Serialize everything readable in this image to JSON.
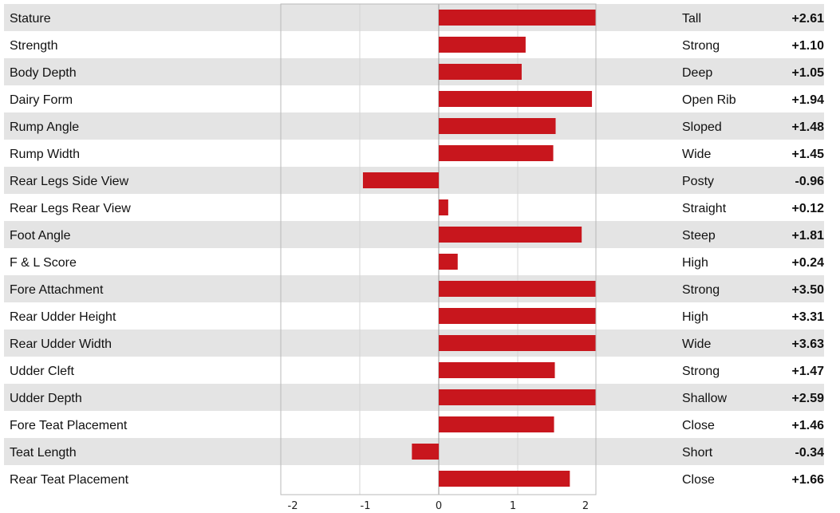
{
  "chart_data": {
    "type": "bar",
    "orientation": "horizontal",
    "xlim": [
      -2,
      2
    ],
    "x_ticks": [
      "-2",
      "-1",
      "0",
      "1",
      "2"
    ],
    "grid": true,
    "bar_color": "#c8161d",
    "row_band_color": "#e4e4e4",
    "rows": [
      {
        "trait": "Stature",
        "descriptor": "Tall",
        "value": 2.61,
        "value_label": "+2.61"
      },
      {
        "trait": "Strength",
        "descriptor": "Strong",
        "value": 1.1,
        "value_label": "+1.10"
      },
      {
        "trait": "Body Depth",
        "descriptor": "Deep",
        "value": 1.05,
        "value_label": "+1.05"
      },
      {
        "trait": "Dairy Form",
        "descriptor": "Open Rib",
        "value": 1.94,
        "value_label": "+1.94"
      },
      {
        "trait": "Rump Angle",
        "descriptor": "Sloped",
        "value": 1.48,
        "value_label": "+1.48"
      },
      {
        "trait": "Rump Width",
        "descriptor": "Wide",
        "value": 1.45,
        "value_label": "+1.45"
      },
      {
        "trait": "Rear Legs Side View",
        "descriptor": "Posty",
        "value": -0.96,
        "value_label": "-0.96"
      },
      {
        "trait": "Rear Legs Rear View",
        "descriptor": "Straight",
        "value": 0.12,
        "value_label": "+0.12"
      },
      {
        "trait": "Foot Angle",
        "descriptor": "Steep",
        "value": 1.81,
        "value_label": "+1.81"
      },
      {
        "trait": "F & L Score",
        "descriptor": "High",
        "value": 0.24,
        "value_label": "+0.24"
      },
      {
        "trait": "Fore Attachment",
        "descriptor": "Strong",
        "value": 3.5,
        "value_label": "+3.50"
      },
      {
        "trait": "Rear Udder Height",
        "descriptor": "High",
        "value": 3.31,
        "value_label": "+3.31"
      },
      {
        "trait": "Rear Udder Width",
        "descriptor": "Wide",
        "value": 3.63,
        "value_label": "+3.63"
      },
      {
        "trait": "Udder Cleft",
        "descriptor": "Strong",
        "value": 1.47,
        "value_label": "+1.47"
      },
      {
        "trait": "Udder Depth",
        "descriptor": "Shallow",
        "value": 2.59,
        "value_label": "+2.59"
      },
      {
        "trait": "Fore Teat Placement",
        "descriptor": "Close",
        "value": 1.46,
        "value_label": "+1.46"
      },
      {
        "trait": "Teat Length",
        "descriptor": "Short",
        "value": -0.34,
        "value_label": "-0.34"
      },
      {
        "trait": "Rear Teat Placement",
        "descriptor": "Close",
        "value": 1.66,
        "value_label": "+1.66"
      }
    ]
  }
}
